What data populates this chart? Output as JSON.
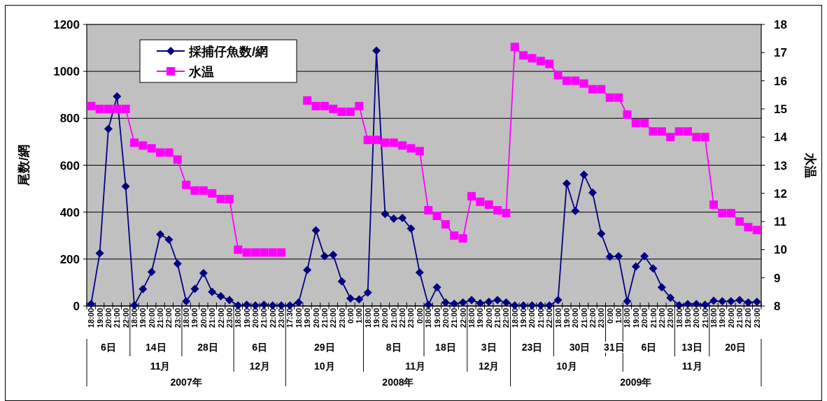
{
  "chart_data": {
    "type": "line",
    "categories": [
      "18:00",
      "19:00",
      "20:00",
      "21:00",
      "22:00",
      "18:00",
      "19:00",
      "20:00",
      "21:00",
      "22:00",
      "23:00",
      "18:00",
      "19:00",
      "20:00",
      "21:00",
      "22:00",
      "23:00",
      "18:00",
      "19:00",
      "20:00",
      "21:00",
      "22:00",
      "23:00",
      "17:30",
      "18:00",
      "19:00",
      "20:00",
      "21:00",
      "22:00",
      "23:00",
      "0:00",
      "1:00",
      "18:00",
      "19:00",
      "20:00",
      "21:00",
      "22:00",
      "23:00",
      "0:00",
      "18:00",
      "19:00",
      "20:00",
      "21:00",
      "22:00",
      "18:00",
      "19:00",
      "20:00",
      "21:00",
      "22:00",
      "18:00",
      "19:00",
      "20:00",
      "21:00",
      "22:00",
      "18:00",
      "19:00",
      "20:00",
      "21:00",
      "22:00",
      "23:00",
      "0:00",
      "1:00",
      "18:00",
      "19:00",
      "20:00",
      "21:00",
      "22:00",
      "23:00",
      "18:00",
      "19:00",
      "20:00",
      "21:00",
      "18:00",
      "19:00",
      "20:00",
      "21:00",
      "22:00",
      "23:00"
    ],
    "series": [
      {
        "name": "採捕仔魚数/網",
        "color": "#000080",
        "marker": "diamond",
        "values": [
          8,
          225,
          755,
          893,
          510,
          3,
          72,
          145,
          305,
          283,
          180,
          20,
          73,
          140,
          60,
          42,
          25,
          2,
          5,
          2,
          5,
          2,
          2,
          2,
          15,
          153,
          322,
          212,
          218,
          105,
          32,
          28,
          57,
          1088,
          392,
          372,
          375,
          330,
          143,
          5,
          80,
          15,
          10,
          15,
          25,
          12,
          18,
          25,
          15,
          2,
          2,
          2,
          2,
          2,
          25,
          522,
          405,
          560,
          483,
          308,
          210,
          212,
          20,
          168,
          212,
          160,
          80,
          35,
          3,
          8,
          8,
          5,
          22,
          20,
          20,
          25,
          15,
          18
        ]
      },
      {
        "name": "水温",
        "color": "#ff00ff",
        "marker": "square",
        "axis": "y2",
        "values": [
          15.1,
          15.0,
          15.0,
          15.0,
          15.0,
          13.8,
          13.7,
          13.6,
          13.45,
          13.45,
          13.2,
          12.3,
          12.1,
          12.1,
          12.0,
          11.8,
          11.8,
          10.0,
          9.9,
          9.9,
          9.9,
          9.9,
          9.9,
          null,
          null,
          15.3,
          15.1,
          15.1,
          15.0,
          14.9,
          14.9,
          15.1,
          13.9,
          13.9,
          13.8,
          13.8,
          13.7,
          13.6,
          13.5,
          11.4,
          11.2,
          10.9,
          10.5,
          10.4,
          11.9,
          11.7,
          11.6,
          11.4,
          11.3,
          17.2,
          16.9,
          16.8,
          16.7,
          16.6,
          16.2,
          16.0,
          16.0,
          15.9,
          15.7,
          15.7,
          15.4,
          15.4,
          14.8,
          14.5,
          14.5,
          14.2,
          14.2,
          14.0,
          14.2,
          14.2,
          14.0,
          14.0,
          11.6,
          11.3,
          11.3,
          11.0,
          10.8,
          10.7
        ]
      }
    ],
    "ylabel": "尾数/網",
    "y2label": "水温",
    "ylim": [
      0,
      1200
    ],
    "yticks": [
      0,
      200,
      400,
      600,
      800,
      1000,
      1200
    ],
    "y2lim": [
      8,
      18
    ],
    "y2ticks": [
      8,
      9,
      10,
      11,
      12,
      13,
      14,
      15,
      16,
      17,
      18
    ],
    "grid": "y",
    "legend": "top left",
    "annotations": [
      "6日",
      "14日",
      "28日",
      "6日",
      "29日",
      "8日",
      "18日",
      "3日",
      "23日",
      "30日",
      "31日",
      "6日",
      "13日",
      "20日",
      "11月",
      "12月",
      "10月",
      "11月",
      "12月",
      "10月",
      "11月",
      "2007年",
      "2008年",
      "2009年"
    ]
  }
}
